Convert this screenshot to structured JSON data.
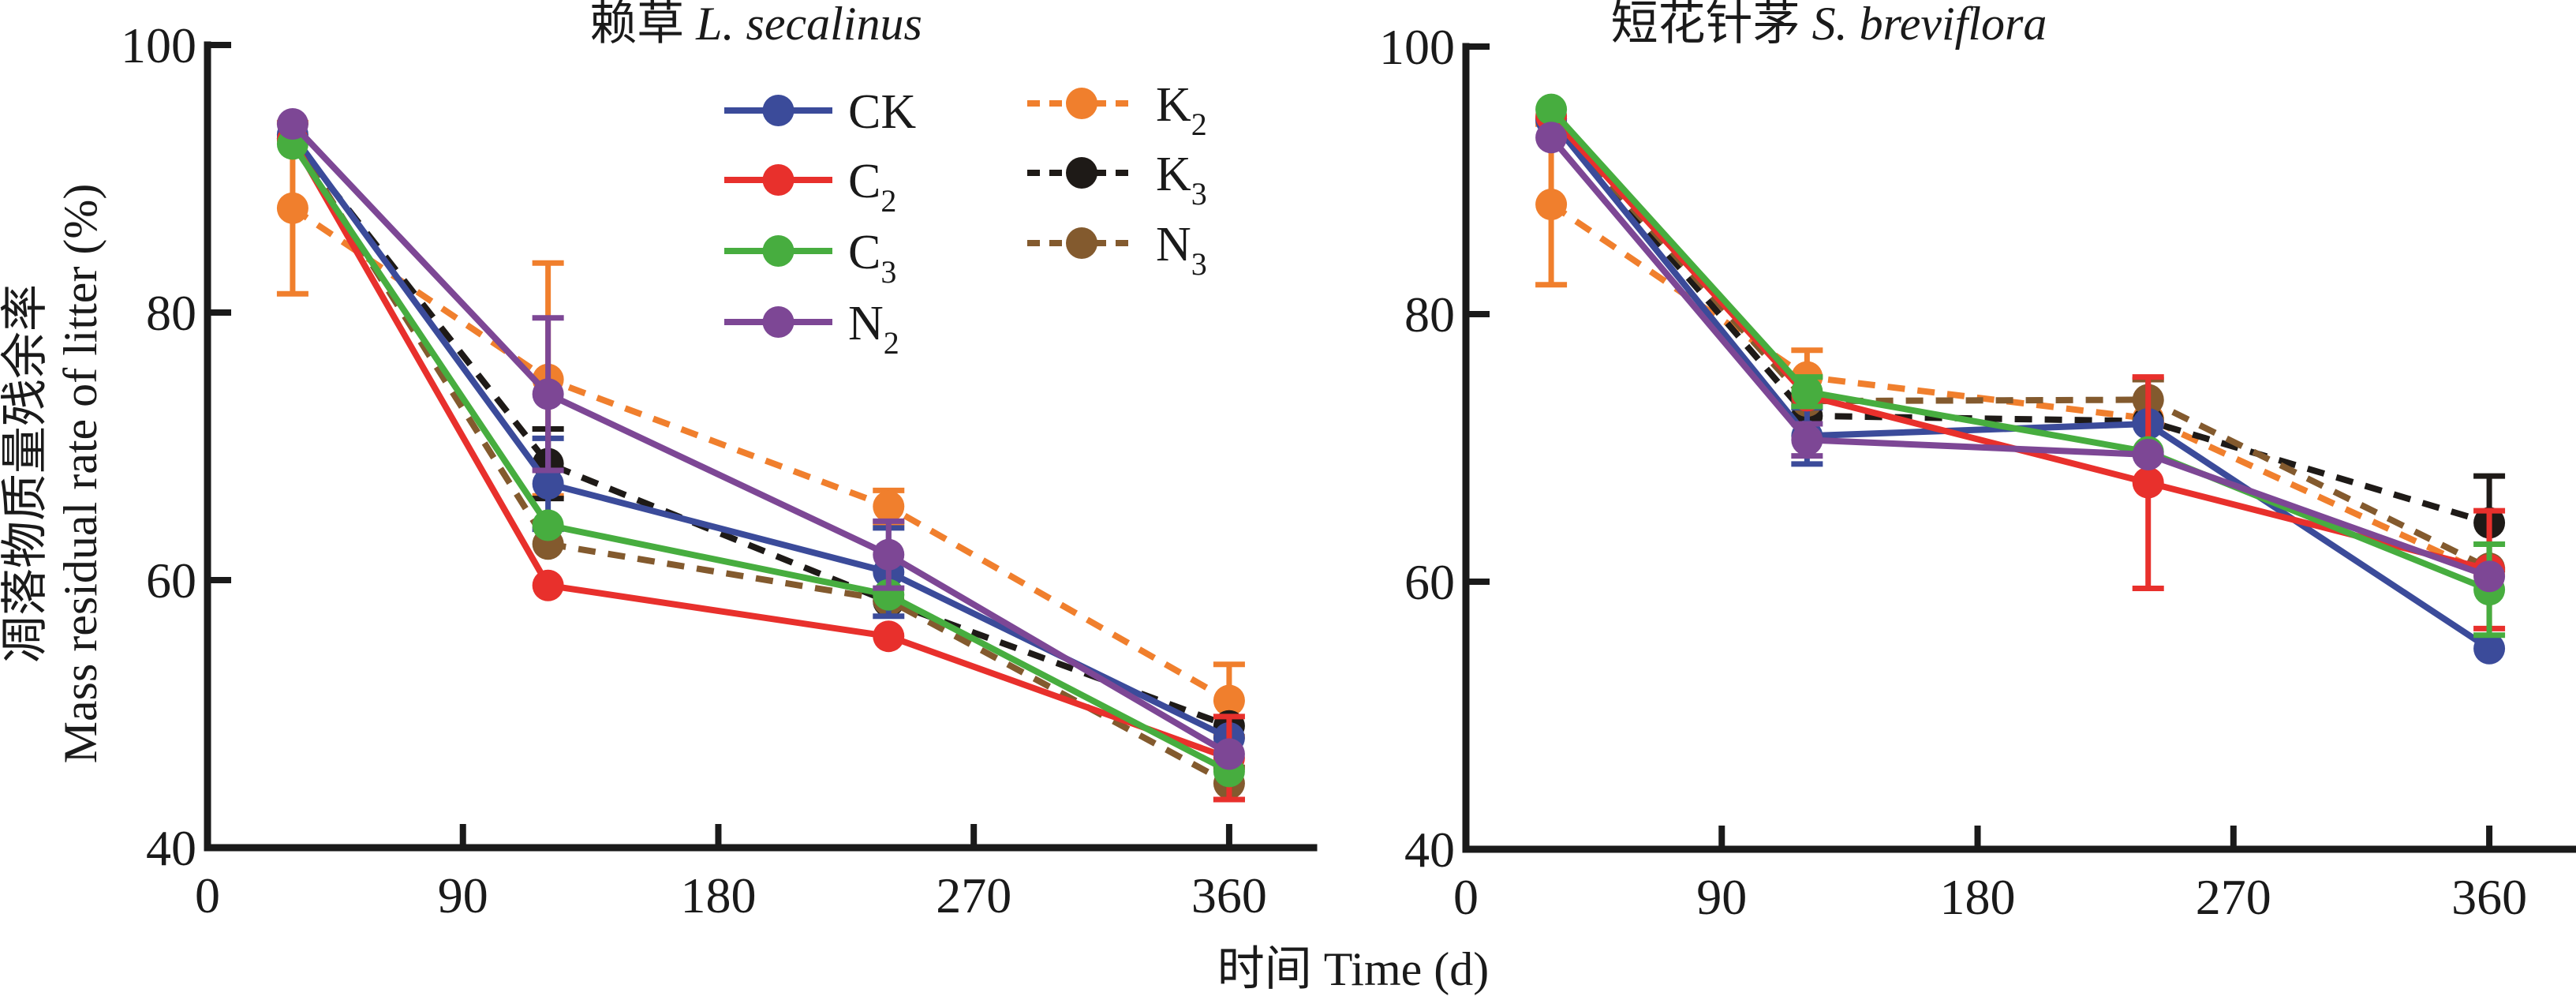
{
  "chart_data": [
    {
      "type": "line",
      "title_cn": "赖草",
      "title_latin": "L. secalinus",
      "xlabel": "时间 Time (d)",
      "ylabel_cn": "凋落物质量残余率",
      "ylabel_en": "Mass residual rate of litter (%)",
      "xlim": [
        0,
        390
      ],
      "ylim": [
        40,
        100
      ],
      "xticks": [
        0,
        90,
        180,
        270,
        360
      ],
      "yticks": [
        40,
        60,
        80,
        100
      ],
      "xtick_labels": [
        "0",
        "90",
        "180",
        "270",
        "360"
      ],
      "ytick_labels": [
        "40",
        "60",
        "80",
        "100"
      ],
      "grid": false,
      "legend_position": "top-right",
      "x": [
        30,
        120,
        240,
        360
      ],
      "series": [
        {
          "name": "CK",
          "sub": "",
          "color": "#3b4b9a",
          "dash": false,
          "values": [
            93.3,
            67.2,
            60.6,
            48.2
          ],
          "err": [
            null,
            3.4,
            3.3,
            null
          ]
        },
        {
          "name": "C",
          "sub": "2",
          "color": "#e8302c",
          "dash": false,
          "values": [
            92.9,
            59.6,
            55.8,
            46.7
          ],
          "err": [
            null,
            null,
            null,
            3.1
          ]
        },
        {
          "name": "C",
          "sub": "3",
          "color": "#47ad3f",
          "dash": false,
          "values": [
            92.6,
            64.1,
            58.9,
            45.7
          ],
          "err": [
            null,
            null,
            null,
            null
          ]
        },
        {
          "name": "N",
          "sub": "2",
          "color": "#7d4795",
          "dash": false,
          "values": [
            94.1,
            73.9,
            61.9,
            47.0
          ],
          "err": [
            null,
            5.7,
            2.5,
            null
          ]
        },
        {
          "name": "K",
          "sub": "2",
          "color": "#f07f2d",
          "dash": true,
          "values": [
            87.8,
            75.0,
            65.5,
            51.0
          ],
          "err": [
            6.4,
            8.7,
            1.2,
            2.7
          ]
        },
        {
          "name": "K",
          "sub": "3",
          "color": "#1e1a17",
          "dash": true,
          "values": [
            93.0,
            68.7,
            58.4,
            49.1
          ],
          "err": [
            null,
            2.6,
            null,
            null
          ]
        },
        {
          "name": "N",
          "sub": "3",
          "color": "#835a2e",
          "dash": true,
          "values": [
            93.0,
            62.7,
            58.5,
            44.8
          ],
          "err": [
            null,
            null,
            null,
            1.2
          ]
        }
      ]
    },
    {
      "type": "line",
      "title_cn": "短花针茅",
      "title_latin": "S. breviflora",
      "xlabel": "时间 Time (d)",
      "xlim": [
        0,
        390
      ],
      "ylim": [
        40,
        100
      ],
      "xticks": [
        0,
        90,
        180,
        270,
        360
      ],
      "yticks": [
        40,
        60,
        80,
        100
      ],
      "xtick_labels": [
        "0",
        "90",
        "180",
        "270",
        "360"
      ],
      "ytick_labels": [
        "40",
        "60",
        "80",
        "100"
      ],
      "grid": false,
      "x": [
        30,
        120,
        240,
        360
      ],
      "series": [
        {
          "name": "CK",
          "sub": "",
          "color": "#3b4b9a",
          "dash": false,
          "values": [
            94.5,
            70.9,
            71.8,
            55.0
          ],
          "err": [
            null,
            2.1,
            null,
            null
          ]
        },
        {
          "name": "C",
          "sub": "2",
          "color": "#e8302c",
          "dash": false,
          "values": [
            94.8,
            73.9,
            67.4,
            60.9
          ],
          "err": [
            null,
            null,
            7.9,
            4.4
          ]
        },
        {
          "name": "C",
          "sub": "3",
          "color": "#47ad3f",
          "dash": false,
          "values": [
            95.3,
            74.2,
            69.7,
            59.4
          ],
          "err": [
            null,
            1.1,
            null,
            3.4
          ]
        },
        {
          "name": "N",
          "sub": "2",
          "color": "#7d4795",
          "dash": false,
          "values": [
            93.2,
            70.6,
            69.5,
            60.4
          ],
          "err": [
            null,
            1.2,
            null,
            null
          ]
        },
        {
          "name": "K",
          "sub": "2",
          "color": "#f07f2d",
          "dash": true,
          "values": [
            88.2,
            75.3,
            72.2,
            60.5
          ],
          "err": [
            6.0,
            2.0,
            null,
            null
          ]
        },
        {
          "name": "K",
          "sub": "3",
          "color": "#1e1a17",
          "dash": true,
          "values": [
            94.6,
            72.4,
            72.0,
            64.4
          ],
          "err": [
            null,
            null,
            null,
            3.5
          ]
        },
        {
          "name": "N",
          "sub": "3",
          "color": "#835a2e",
          "dash": true,
          "values": [
            94.6,
            73.5,
            73.6,
            61.0
          ],
          "err": [
            null,
            null,
            1.5,
            null
          ]
        }
      ]
    }
  ]
}
